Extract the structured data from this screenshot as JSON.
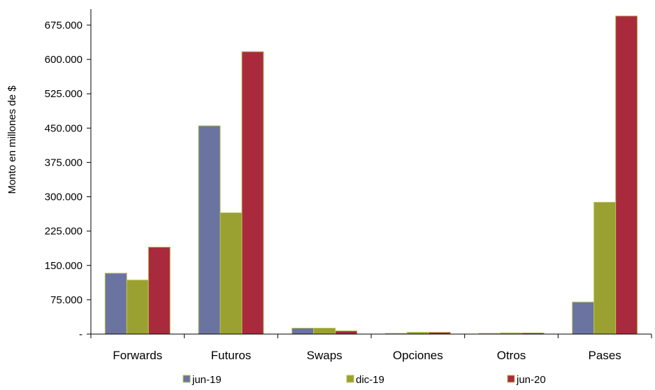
{
  "chart_data": {
    "type": "bar",
    "categories": [
      "Forwards",
      "Futuros",
      "Swaps",
      "Opciones",
      "Otros",
      "Pases"
    ],
    "series": [
      {
        "name": "jun-19",
        "color": "#6b74a0",
        "values": [
          133000,
          455000,
          13000,
          1500,
          1500,
          70000
        ]
      },
      {
        "name": "dic-19",
        "color": "#9aa130",
        "values": [
          118000,
          265000,
          13000,
          4000,
          2500,
          288000
        ]
      },
      {
        "name": "jun-20",
        "color": "#a92a3c",
        "values": [
          190000,
          617000,
          7000,
          4000,
          2500,
          695000
        ]
      }
    ],
    "ylabel": "Monto en millones de $",
    "ylim": [
      0,
      710000
    ],
    "yticks": [
      {
        "value": 0,
        "label": "-"
      },
      {
        "value": 75000,
        "label": "75.000"
      },
      {
        "value": 150000,
        "label": "150.000"
      },
      {
        "value": 225000,
        "label": "225.000"
      },
      {
        "value": 300000,
        "label": "300.000"
      },
      {
        "value": 375000,
        "label": "375.000"
      },
      {
        "value": 450000,
        "label": "450.000"
      },
      {
        "value": 525000,
        "label": "525.000"
      },
      {
        "value": 600000,
        "label": "600.000"
      },
      {
        "value": 675000,
        "label": "675.000"
      }
    ],
    "grid": false,
    "legend": "bottom"
  }
}
